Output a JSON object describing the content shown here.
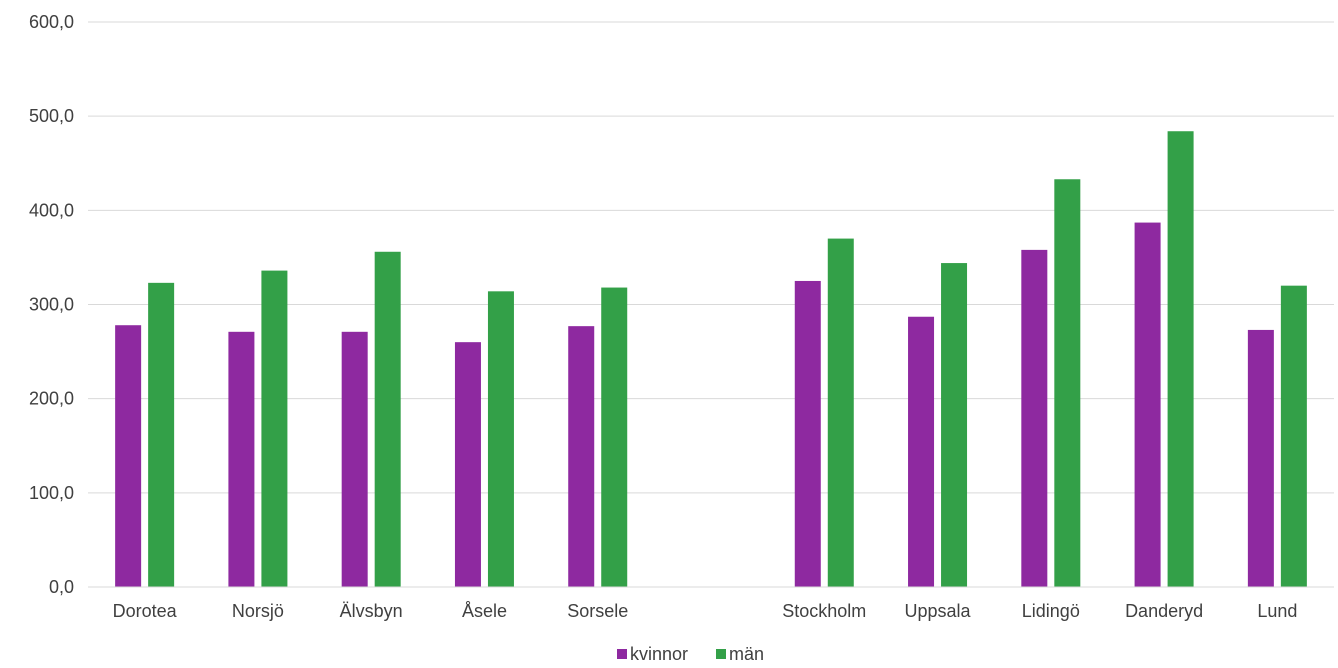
{
  "chart_data": {
    "type": "bar",
    "categories": [
      "Dorotea",
      "Norsjö",
      "Älvsbyn",
      "Åsele",
      "Sorsele",
      "",
      "Stockholm",
      "Uppsala",
      "Lidingö",
      "Danderyd",
      "Lund"
    ],
    "series": [
      {
        "name": "kvinnor",
        "color": "#8e29a0",
        "values": [
          278,
          271,
          271,
          260,
          277,
          null,
          325,
          287,
          358,
          387,
          273
        ]
      },
      {
        "name": "män",
        "color": "#33a048",
        "values": [
          323,
          336,
          356,
          314,
          318,
          null,
          370,
          344,
          433,
          484,
          320
        ]
      }
    ],
    "yticks": [
      "0,0",
      "100,0",
      "200,0",
      "300,0",
      "400,0",
      "500,0",
      "600,0"
    ],
    "ylim": [
      0,
      600
    ],
    "grid": true,
    "legend_position": "bottom-center"
  }
}
